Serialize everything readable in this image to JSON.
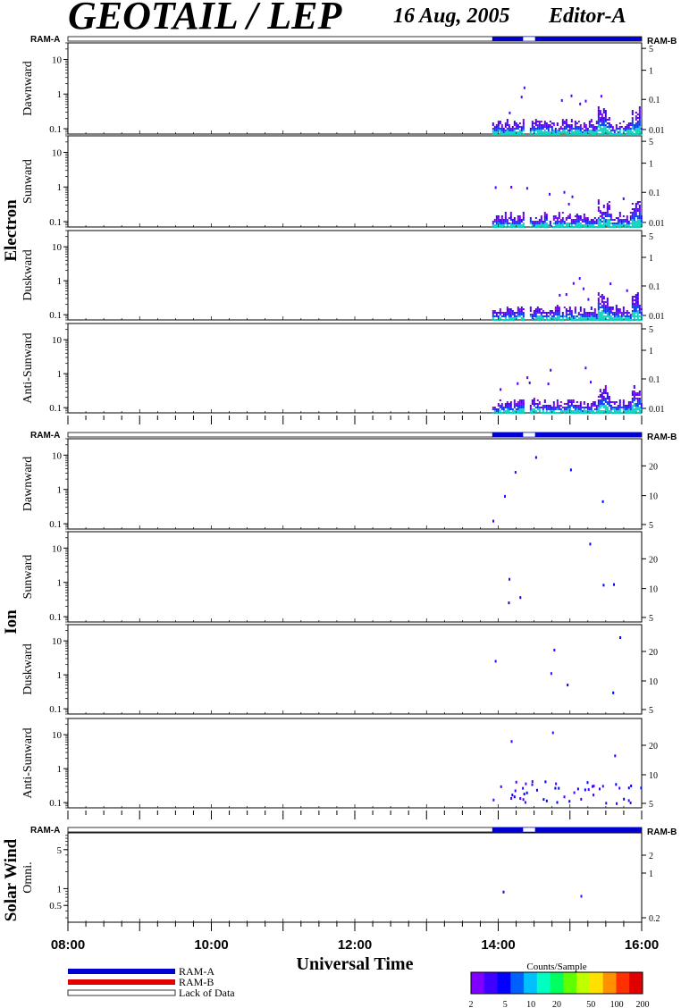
{
  "header": {
    "title": "GEOTAIL / LEP",
    "date": "16 Aug, 2005",
    "editor": "Editor-A"
  },
  "colors": {
    "ram_a": "#0000d0",
    "ram_b": "#e00000",
    "colorbar": [
      "#7f00ff",
      "#3f00ff",
      "#0000ff",
      "#0060ff",
      "#00c0ff",
      "#00ffc0",
      "#00ff60",
      "#60ff00",
      "#c0ff00",
      "#ffe000",
      "#ff9000",
      "#ff3000",
      "#e00000"
    ]
  },
  "chart_data": {
    "type": "heatmap",
    "xlabel": "Universal Time",
    "x_ticks": [
      "08:00",
      "10:00",
      "12:00",
      "14:00",
      "16:00"
    ],
    "xlim": [
      "08:00",
      "16:00"
    ],
    "data_interval": [
      "13:55",
      "16:00"
    ],
    "ram_label_left": "RAM-A",
    "ram_label_right": "RAM-B",
    "groups": [
      {
        "name": "Electron",
        "right_ticks": [
          "5",
          "1",
          "0.1",
          "0.01"
        ],
        "panels": [
          {
            "direction": "Dawnward",
            "left_ticks": [
              "10",
              "1",
              "0.1"
            ]
          },
          {
            "direction": "Sunward",
            "left_ticks": [
              "10",
              "1",
              "0.1"
            ]
          },
          {
            "direction": "Duskward",
            "left_ticks": [
              "10",
              "1",
              "0.1"
            ]
          },
          {
            "direction": "Anti-Sunward",
            "left_ticks": [
              "10",
              "1",
              "0.1"
            ]
          }
        ]
      },
      {
        "name": "Ion",
        "right_ticks": [
          "20",
          "10",
          "5"
        ],
        "panels": [
          {
            "direction": "Dawnward",
            "left_ticks": [
              "10",
              "1",
              "0.1"
            ]
          },
          {
            "direction": "Sunward",
            "left_ticks": [
              "10",
              "1",
              "0.1"
            ]
          },
          {
            "direction": "Duskward",
            "left_ticks": [
              "10",
              "1",
              "0.1"
            ]
          },
          {
            "direction": "Anti-Sunward",
            "left_ticks": [
              "10",
              "1",
              "0.1"
            ]
          }
        ]
      },
      {
        "name": "Solar Wind",
        "right_ticks": [
          "2",
          "1",
          "0.2"
        ],
        "panels": [
          {
            "direction": "Omni.",
            "left_ticks": [
              "5",
              "1",
              "0.5"
            ]
          }
        ]
      }
    ],
    "legend": {
      "ram_a": "RAM-A",
      "ram_b": "RAM-B",
      "lack": "Lack of Data"
    },
    "colorbar": {
      "title": "Counts/Sample",
      "ticks": [
        "2",
        "5",
        "10",
        "20",
        "50",
        "100",
        "200"
      ]
    }
  }
}
